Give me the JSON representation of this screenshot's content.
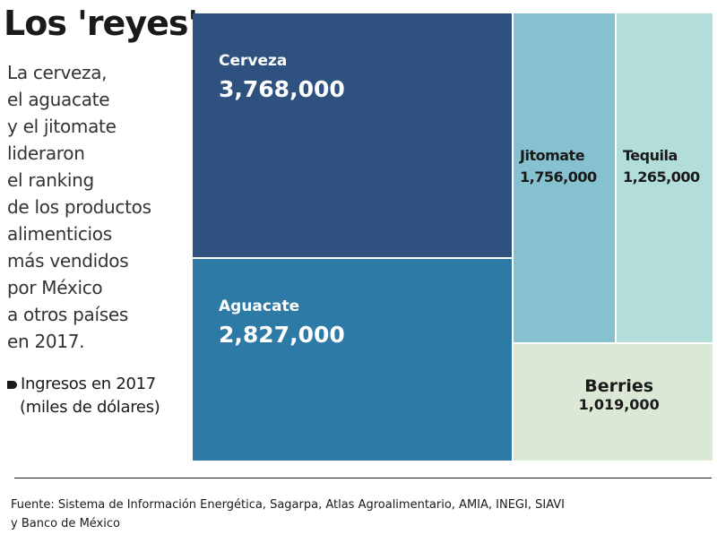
{
  "title": "Los 'reyes'",
  "description_lines": [
    "La cerveza,",
    "el aguacate",
    "y el jitomate",
    "lideraron",
    "el ranking",
    "de los productos",
    "alimenticios",
    "más vendidos",
    "por México",
    "a otros países",
    "en 2017."
  ],
  "legend": {
    "line1": "Ingresos en 2017",
    "line2": "(miles de dólares)"
  },
  "source_lines": [
    "Fuente: Sistema de Información Energética, Sagarpa, Atlas Agroalimentario, AMIA, INEGI, SIAVI",
    "y Banco de México"
  ],
  "chart_data": {
    "type": "treemap",
    "items": [
      {
        "label": "Cerveza",
        "value": 3768000,
        "value_label": "3,768,000",
        "color": "#2e5180",
        "text_color": "#ffffff"
      },
      {
        "label": "Aguacate",
        "value": 2827000,
        "value_label": "2,827,000",
        "color": "#2d7aa6",
        "text_color": "#ffffff"
      },
      {
        "label": "Jitomate",
        "value": 1756000,
        "value_label": "1,756,000",
        "color": "#86c1cf",
        "text_color": "#1a1a1a"
      },
      {
        "label": "Tequila",
        "value": 1265000,
        "value_label": "1,265,000",
        "color": "#b2ddd9",
        "text_color": "#1a1a1a"
      },
      {
        "label": "Berries",
        "value": 1019000,
        "value_label": "1,019,000",
        "color": "#dbe8d5",
        "text_color": "#1a1a1a"
      }
    ]
  }
}
